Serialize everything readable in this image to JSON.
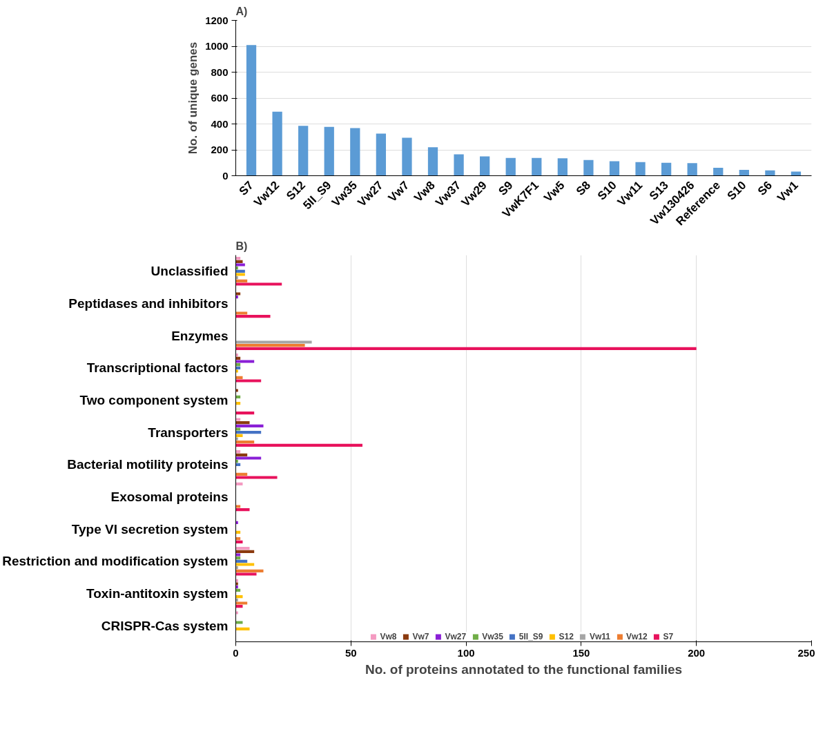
{
  "chart_data": [
    {
      "type": "bar",
      "title": "A)",
      "ylabel": "No. of unique genes",
      "categories": [
        "S7",
        "Vw12",
        "S12",
        "5II_S9",
        "Vw35",
        "Vw27",
        "Vw7",
        "Vw8",
        "Vw37",
        "Vw29",
        "S9",
        "VwK7F1",
        "Vw5",
        "S8",
        "S10",
        "Vw11",
        "S13",
        "Vw130426",
        "Reference",
        "S10",
        "S6",
        "Vw1"
      ],
      "values": [
        1010,
        495,
        385,
        378,
        368,
        325,
        293,
        220,
        165,
        150,
        137,
        137,
        135,
        122,
        112,
        105,
        100,
        97,
        62,
        45,
        42,
        32
      ],
      "color": "#5b9bd5",
      "ylim": [
        0,
        1200
      ],
      "yticks": [
        0,
        200,
        400,
        600,
        800,
        1000,
        1200
      ],
      "grid": "y"
    },
    {
      "type": "bar",
      "title": "B)",
      "orientation": "horizontal",
      "xlabel": "No. of proteins annotated to the functional families",
      "categories": [
        "Unclassified",
        "Peptidases and inhibitors",
        "Enzymes",
        "Transcriptional factors",
        "Two component system",
        "Transporters",
        "Bacterial motility proteins",
        "Exosomal proteins",
        "Type VI secretion system",
        "Restriction and modification system",
        "Toxin-antitoxin system",
        "CRISPR-Cas system"
      ],
      "series": [
        {
          "name": "Vw8",
          "color": "#f49ac1",
          "values": [
            2,
            0,
            0,
            1,
            0,
            2,
            2,
            3,
            0,
            6,
            1,
            1
          ]
        },
        {
          "name": "Vw7",
          "color": "#8b3a0f",
          "values": [
            3,
            2,
            0,
            2,
            1,
            6,
            5,
            0,
            0,
            8,
            1,
            0
          ]
        },
        {
          "name": "Vw27",
          "color": "#8a1fd6",
          "values": [
            4,
            1,
            0,
            8,
            0,
            12,
            11,
            0,
            1,
            2,
            1,
            0
          ]
        },
        {
          "name": "Vw35",
          "color": "#70ad47",
          "values": [
            1,
            0,
            0,
            2,
            2,
            2,
            1,
            0,
            0,
            2,
            2,
            3
          ]
        },
        {
          "name": "5II_S9",
          "color": "#4472c4",
          "values": [
            4,
            0,
            0,
            2,
            0,
            11,
            2,
            0,
            0,
            5,
            0,
            0
          ]
        },
        {
          "name": "S12",
          "color": "#ffc000",
          "values": [
            4,
            0,
            0,
            1,
            2,
            3,
            0,
            0,
            2,
            8,
            3,
            6
          ]
        },
        {
          "name": "Vw11",
          "color": "#a5a5a5",
          "values": [
            1,
            0,
            33,
            0,
            0,
            1,
            0,
            0,
            0,
            1,
            1,
            0
          ]
        },
        {
          "name": "Vw12",
          "color": "#ed7d31",
          "values": [
            5,
            5,
            30,
            3,
            0,
            8,
            5,
            2,
            2,
            12,
            5,
            0
          ]
        },
        {
          "name": "S7",
          "color": "#e8125c",
          "values": [
            20,
            15,
            200,
            11,
            8,
            55,
            18,
            6,
            3,
            9,
            3,
            0
          ]
        }
      ],
      "xlim": [
        0,
        250
      ],
      "xticks": [
        0,
        50,
        100,
        150,
        200,
        250
      ],
      "grid": "x",
      "legend": "bottom"
    }
  ]
}
